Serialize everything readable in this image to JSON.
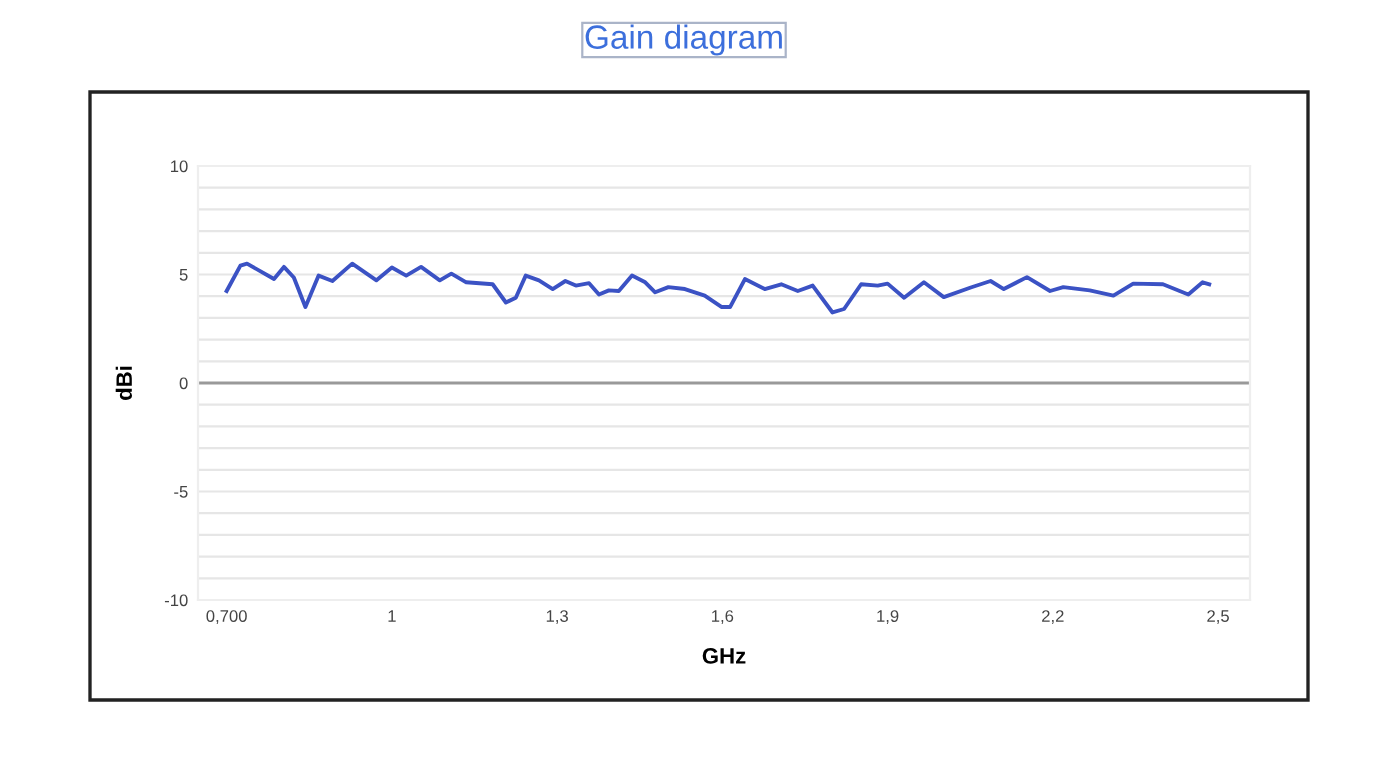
{
  "chart_data": {
    "type": "line",
    "title": "Gain diagram",
    "xlabel": "GHz",
    "ylabel": "dBi",
    "x": [
      0.7,
      0.725,
      0.737,
      0.786,
      0.804,
      0.822,
      0.843,
      0.867,
      0.892,
      0.928,
      0.972,
      1.0,
      1.026,
      1.053,
      1.087,
      1.108,
      1.135,
      1.183,
      1.207,
      1.225,
      1.243,
      1.267,
      1.292,
      1.315,
      1.334,
      1.358,
      1.376,
      1.394,
      1.412,
      1.436,
      1.46,
      1.478,
      1.502,
      1.532,
      1.568,
      1.599,
      1.614,
      1.641,
      1.677,
      1.707,
      1.737,
      1.764,
      1.8,
      1.821,
      1.852,
      1.882,
      1.9,
      1.93,
      1.966,
      2.002,
      2.051,
      2.087,
      2.111,
      2.153,
      2.195,
      2.219,
      2.267,
      2.31,
      2.346,
      2.4,
      2.446,
      2.472,
      2.484
    ],
    "series": [
      {
        "color": "#3b52c4",
        "values": [
          4.24,
          5.41,
          5.5,
          4.79,
          5.35,
          4.86,
          3.5,
          4.95,
          4.7,
          5.5,
          4.73,
          5.32,
          4.95,
          5.35,
          4.73,
          5.04,
          4.64,
          4.55,
          3.71,
          3.93,
          4.95,
          4.73,
          4.33,
          4.7,
          4.49,
          4.6,
          4.08,
          4.27,
          4.24,
          4.95,
          4.64,
          4.18,
          4.42,
          4.33,
          4.03,
          3.5,
          3.5,
          4.79,
          4.33,
          4.55,
          4.24,
          4.49,
          3.25,
          3.41,
          4.55,
          4.49,
          4.58,
          3.93,
          4.64,
          3.96,
          4.4,
          4.7,
          4.33,
          4.88,
          4.24,
          4.42,
          4.27,
          4.03,
          4.58,
          4.55,
          4.08,
          4.64,
          4.55
        ]
      }
    ],
    "xlim": [
      0.648,
      2.558
    ],
    "ylim": [
      -10,
      10
    ],
    "xticks": [
      {
        "value": 0.7,
        "label": "0,700"
      },
      1,
      {
        "value": 1.3,
        "label": "1,3"
      },
      {
        "value": 1.6,
        "label": "1,6"
      },
      {
        "value": 1.9,
        "label": "1,9"
      },
      {
        "value": 2.2,
        "label": "2,2"
      },
      {
        "value": 2.5,
        "label": "2,5"
      }
    ],
    "yticks": [
      -10,
      {
        "value": -9,
        "label": null
      },
      {
        "value": -8,
        "label": null
      },
      {
        "value": -7,
        "label": null
      },
      {
        "value": -6,
        "label": null
      },
      -5,
      {
        "value": -4,
        "label": null
      },
      {
        "value": -3,
        "label": null
      },
      {
        "value": -2,
        "label": null
      },
      {
        "value": -1,
        "label": null
      },
      0,
      {
        "value": 1,
        "label": null
      },
      {
        "value": 2,
        "label": null
      },
      {
        "value": 3,
        "label": null
      },
      {
        "value": 4,
        "label": null
      },
      5,
      {
        "value": 6,
        "label": null
      },
      {
        "value": 7,
        "label": null
      },
      {
        "value": 8,
        "label": null
      },
      {
        "value": 9,
        "label": null
      },
      10
    ],
    "ref_lines": [
      {
        "axis": "y",
        "value": 0,
        "color": "#999999"
      }
    ],
    "grid": "y",
    "legend": false,
    "line_style": "solid",
    "marker": "none"
  }
}
